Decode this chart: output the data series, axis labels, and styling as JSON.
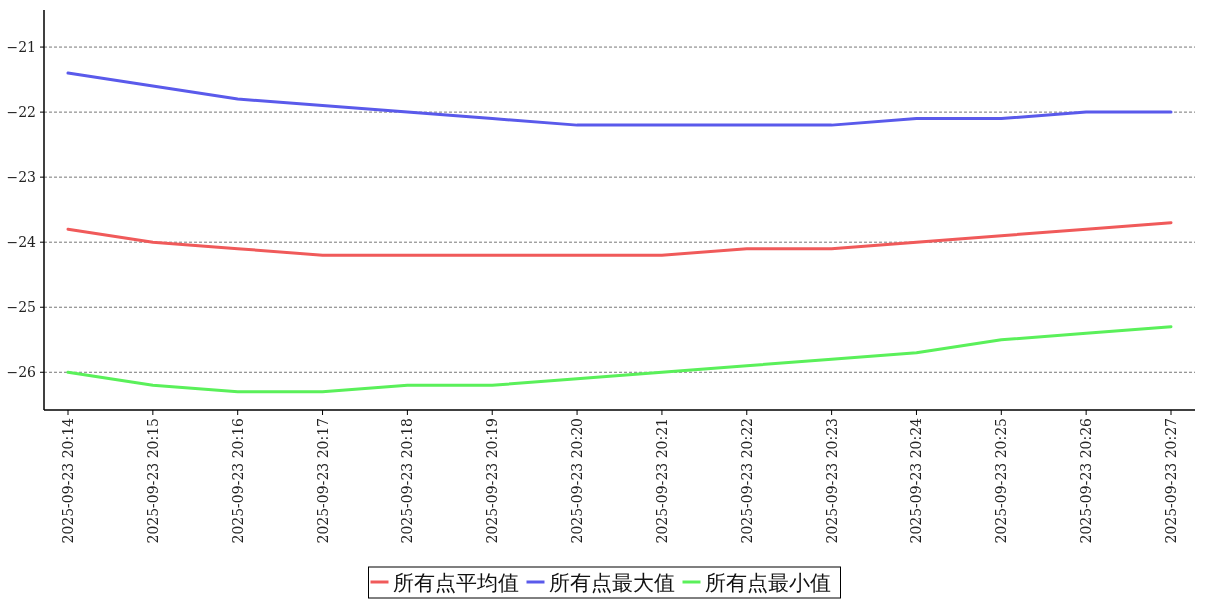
{
  "chart_data": {
    "type": "line",
    "categories": [
      "2025-09-23 20:14",
      "2025-09-23 20:15",
      "2025-09-23 20:16",
      "2025-09-23 20:17",
      "2025-09-23 20:18",
      "2025-09-23 20:19",
      "2025-09-23 20:20",
      "2025-09-23 20:21",
      "2025-09-23 20:22",
      "2025-09-23 20:23",
      "2025-09-23 20:24",
      "2025-09-23 20:25",
      "2025-09-23 20:26",
      "2025-09-23 20:27"
    ],
    "series": [
      {
        "name": "所有点平均值",
        "color": "#f05a5a",
        "values": [
          -23.8,
          -24.0,
          -24.1,
          -24.2,
          -24.2,
          -24.2,
          -24.2,
          -24.2,
          -24.1,
          -24.1,
          -24.0,
          -23.9,
          -23.8,
          -23.7
        ]
      },
      {
        "name": "所有点最大值",
        "color": "#5a5aeb",
        "values": [
          -21.4,
          -21.6,
          -21.8,
          -21.9,
          -22.0,
          -22.1,
          -22.2,
          -22.2,
          -22.2,
          -22.2,
          -22.1,
          -22.1,
          -22.0,
          -22.0
        ]
      },
      {
        "name": "所有点最小值",
        "color": "#5af05a",
        "values": [
          -26.0,
          -26.2,
          -26.3,
          -26.3,
          -26.2,
          -26.2,
          -26.1,
          -26.0,
          -25.9,
          -25.8,
          -25.7,
          -25.5,
          -25.4,
          -25.3
        ]
      }
    ],
    "ylim": [
      -26.58,
      -20.43
    ],
    "yticks": [
      -21,
      -22,
      -23,
      -24,
      -25,
      -26
    ],
    "grid": "y",
    "legend": "bottom",
    "marker": "none",
    "line_style": "solid"
  }
}
